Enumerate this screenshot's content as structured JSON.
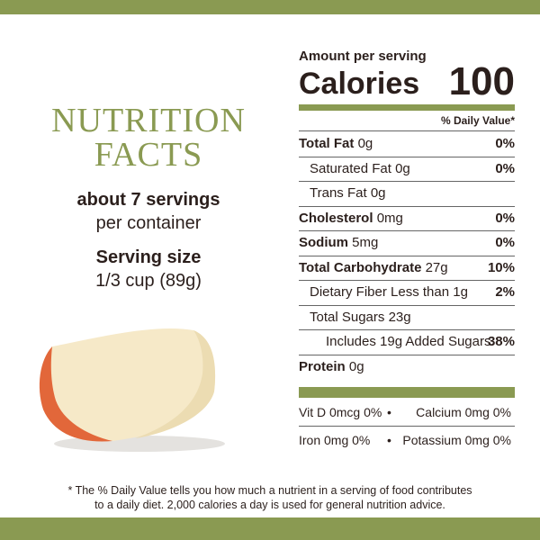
{
  "header": {
    "title_line1": "NUTRITION",
    "title_line2": "FACTS",
    "servings": "about 7 servings",
    "servings_unit": "per container",
    "serving_size_label": "Serving size",
    "serving_size": "1/3 cup (89g)"
  },
  "label": {
    "amount_per_serving": "Amount per serving",
    "calories_label": "Calories",
    "calories": "100",
    "daily_value_header": "% Daily Value*",
    "nutrients": [
      {
        "name": "Total Fat",
        "amount": "0g",
        "dv": "0%"
      },
      {
        "name": "Saturated Fat",
        "amount": "0g",
        "dv": "0%"
      },
      {
        "name": "Trans Fat",
        "amount": "0g"
      },
      {
        "name": "Cholesterol",
        "amount": "0mg",
        "dv": "0%"
      },
      {
        "name": "Sodium",
        "amount": "5mg",
        "dv": "0%"
      },
      {
        "name": "Total Carbohydrate",
        "amount": "27g",
        "dv": "10%"
      },
      {
        "name": "Dietary Fiber",
        "amount": "Less than 1g",
        "dv": "2%"
      },
      {
        "name": "Total Sugars",
        "amount": "23g"
      },
      {
        "name": "Includes 19g Added Sugars",
        "dv": "38%"
      },
      {
        "name": "Protein",
        "amount": "0g"
      }
    ],
    "vitamins": [
      [
        "Vit D 0mcg 0%",
        "Calcium 0mg 0%"
      ],
      [
        "Iron 0mg 0%",
        "Potassium 0mg 0%"
      ]
    ]
  },
  "footnote": [
    "* The % Daily Value tells you how much a nutrient in a serving of food contributes",
    "to a daily diet. 2,000 calories a day is used for general nutrition advice."
  ]
}
